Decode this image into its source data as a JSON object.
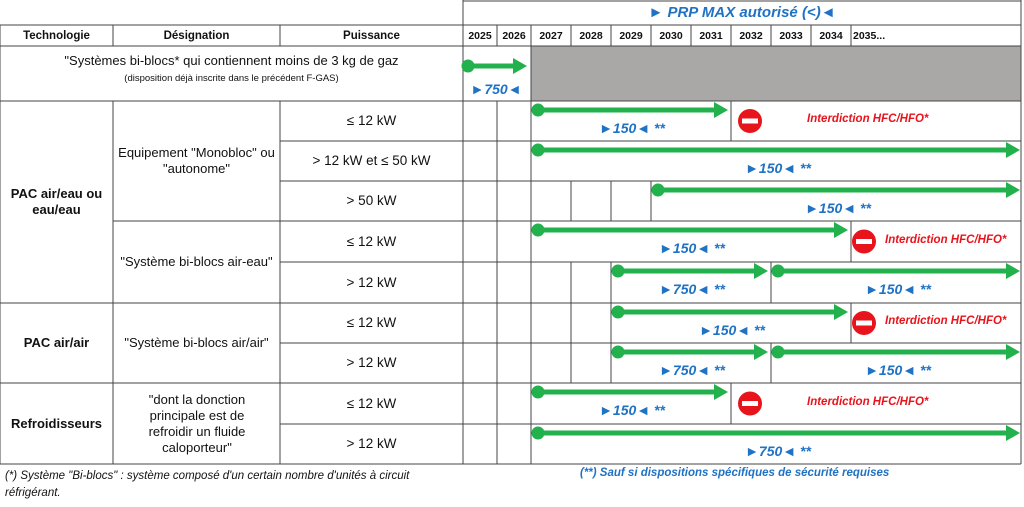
{
  "header": {
    "title": "► PRP MAX autorisé (<)◄",
    "columns": {
      "tech": "Technologie",
      "designation": "Désignation",
      "power": "Puissance"
    },
    "years": [
      "2025",
      "2026",
      "2027",
      "2028",
      "2029",
      "2030",
      "2031",
      "2032",
      "2033",
      "2034",
      "2035..."
    ]
  },
  "first_row": {
    "line1": "\"Systèmes bi-blocs* qui contiennent moins de 3 kg de gaz",
    "line2": "(disposition déjà inscrite dans le précédent F-GAS)",
    "label": "►750◄"
  },
  "technologies": [
    "PAC air/eau ou eau/eau",
    "PAC air/air",
    "Refroidisseurs"
  ],
  "designations": [
    "Equipement \"Monobloc\" ou \"autonome\"",
    "\"Système bi-blocs air-eau\"",
    "\"Système bi-blocs air/air\"",
    "\"dont la donction principale est de refroidir un fluide caloporteur\""
  ],
  "rows": [
    {
      "power": "≤ 12 kW",
      "segments": [
        {
          "from": 2027,
          "to": 2031,
          "label": "►150◄ **"
        }
      ],
      "ban_from": 2032,
      "ban_text": "Interdiction HFC/HFO*"
    },
    {
      "power": "> 12 kW et  ≤ 50 kW",
      "segments": [
        {
          "from": 2027,
          "to": 2035,
          "label": "►150◄ **"
        }
      ]
    },
    {
      "power": ">  50 kW",
      "segments": [
        {
          "from": 2030,
          "to": 2035,
          "label": "►150◄ **"
        }
      ]
    },
    {
      "power": "≤ 12 kW",
      "segments": [
        {
          "from": 2027,
          "to": 2034,
          "label": "►150◄ **"
        }
      ],
      "ban_from": 2035,
      "ban_text": "Interdiction HFC/HFO*"
    },
    {
      "power": ">  12 kW",
      "segments": [
        {
          "from": 2029,
          "to": 2032,
          "label": "►750◄ **"
        },
        {
          "from": 2033,
          "to": 2035,
          "label": "►150◄ **"
        }
      ]
    },
    {
      "power": "≤ 12 kW",
      "segments": [
        {
          "from": 2029,
          "to": 2034,
          "label": "►150◄ **"
        }
      ],
      "ban_from": 2035,
      "ban_text": "Interdiction HFC/HFO*"
    },
    {
      "power": ">  12 kW",
      "segments": [
        {
          "from": 2029,
          "to": 2032,
          "label": "►750◄ **"
        },
        {
          "from": 2033,
          "to": 2035,
          "label": "►150◄ **"
        }
      ]
    },
    {
      "power": "≤ 12 kW",
      "segments": [
        {
          "from": 2027,
          "to": 2031,
          "label": "►150◄ **"
        }
      ],
      "ban_from": 2032,
      "ban_text": "Interdiction HFC/HFO*"
    },
    {
      "power": ">  12 kW",
      "segments": [
        {
          "from": 2027,
          "to": 2035,
          "label": "►750◄ **"
        }
      ]
    }
  ],
  "footnotes": {
    "left": "(*) Système \"Bi-blocs\" : système composé d'un certain nombre d'unités à circuit réfrigérant.",
    "right": "(**) Sauf si dispositions spécifiques de sécurité requises"
  },
  "colors": {
    "arrow": "#22b14c",
    "label": "#1f72c4",
    "ban": "#e8141c",
    "grey": "#aaa8a6"
  }
}
